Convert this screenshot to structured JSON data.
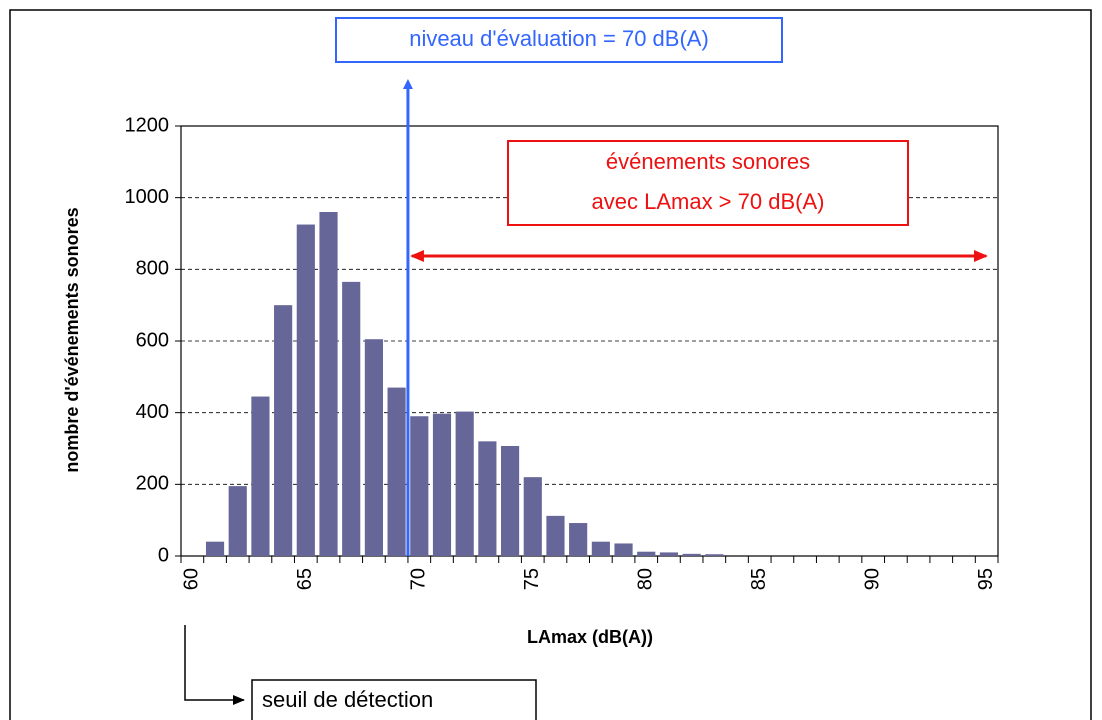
{
  "chart_data": {
    "type": "bar",
    "y_label": "nombre d'événements sonores",
    "x_label": "LAmax (dB(A))",
    "categories": [
      "60",
      null,
      null,
      null,
      null,
      "65",
      null,
      null,
      null,
      null,
      "70",
      null,
      null,
      null,
      null,
      "75",
      null,
      null,
      null,
      null,
      "80",
      null,
      null,
      null,
      null,
      "85",
      null,
      null,
      null,
      null,
      "90",
      null,
      null,
      null,
      null,
      "95"
    ],
    "values": [
      0,
      40,
      195,
      445,
      700,
      925,
      960,
      765,
      605,
      470,
      390,
      397,
      403,
      320,
      307,
      220,
      112,
      92,
      40,
      35,
      12,
      10,
      6,
      5,
      0,
      0,
      0,
      0,
      0,
      0,
      0,
      0,
      0,
      0,
      0,
      0
    ],
    "color": "#666699",
    "ylim": [
      0,
      1200
    ],
    "yticks": [
      0,
      200,
      400,
      600,
      800,
      1000,
      1200
    ],
    "grid": true,
    "annotations": {
      "evaluation": "niveau d'évaluation = 70 dB(A)",
      "events": [
        "événements sonores",
        "avec LAmax > 70 dB(A)"
      ],
      "threshold": "seuil de détection"
    }
  }
}
